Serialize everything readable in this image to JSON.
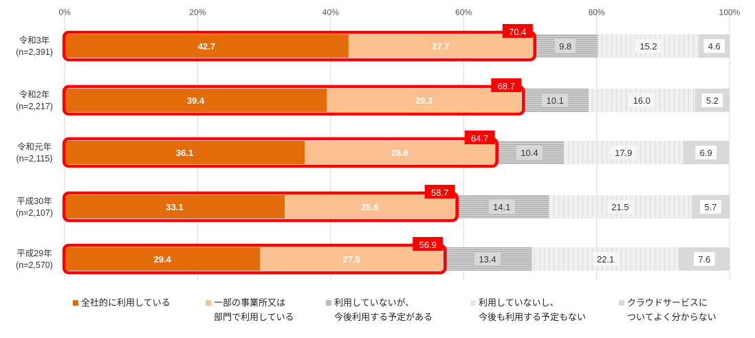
{
  "chart_data": {
    "type": "bar",
    "orientation": "horizontal",
    "stacked": true,
    "xlim": [
      0,
      100
    ],
    "x_ticks": [
      "0%",
      "20%",
      "40%",
      "60%",
      "80%",
      "100%"
    ],
    "grid": true,
    "legend_position": "bottom",
    "categories": [
      {
        "line1": "令和3年",
        "line2": "(n=2,391)"
      },
      {
        "line1": "令和2年",
        "line2": "(n=2,217)"
      },
      {
        "line1": "令和元年",
        "line2": "(n=2,115)"
      },
      {
        "line1": "平成30年",
        "line2": "(n=2,107)"
      },
      {
        "line1": "平成29年",
        "line2": "(n=2,570)"
      }
    ],
    "series": [
      {
        "name_line1": "全社的に利用している",
        "name_line2": "",
        "color": "#e36c0a",
        "values": [
          42.7,
          39.4,
          36.1,
          33.1,
          29.4
        ]
      },
      {
        "name_line1": "一部の事業所又は",
        "name_line2": "部門で利用している",
        "color": "#fac090",
        "values": [
          27.7,
          29.3,
          28.6,
          25.6,
          27.5
        ]
      },
      {
        "name_line1": "利用していないが、",
        "name_line2": "今後利用する予定がある",
        "color": "#c4c4c4",
        "values": [
          9.8,
          10.1,
          10.4,
          14.1,
          13.4
        ]
      },
      {
        "name_line1": "利用していないし、",
        "name_line2": "今後も利用する予定もない",
        "color": "#ececec",
        "values": [
          15.2,
          16.0,
          17.9,
          21.5,
          22.1
        ]
      },
      {
        "name_line1": "クラウドサービスに",
        "name_line2": "ついてよく分からない",
        "color": "#d9d9d9",
        "values": [
          4.6,
          5.2,
          6.9,
          5.7,
          7.6
        ]
      }
    ],
    "highlight_totals": [
      "70.4",
      "68.7",
      "64.7",
      "58.7",
      "56.9"
    ],
    "highlight_color": "#ff0000"
  }
}
